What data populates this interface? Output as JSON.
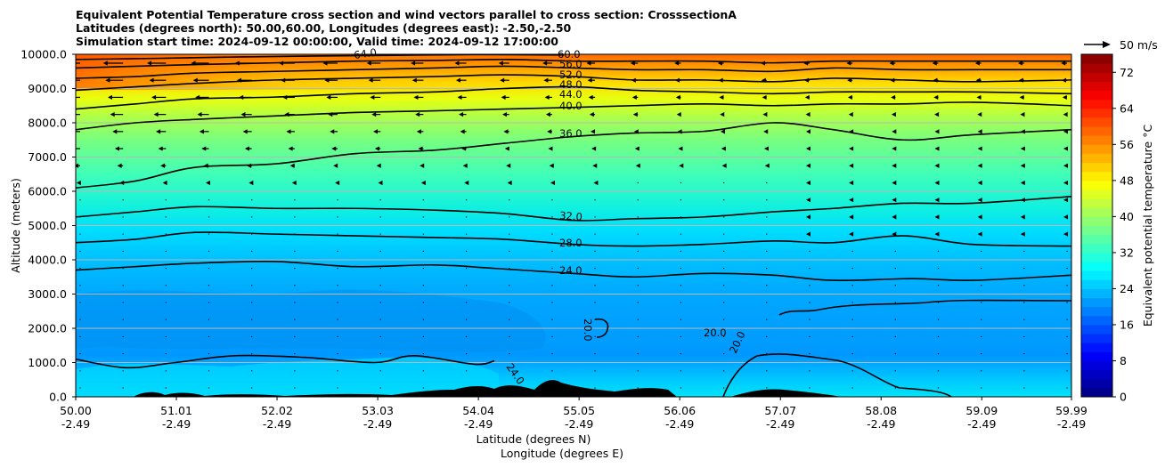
{
  "titles": [
    "Equivalent Potential Temperature cross section and wind vectors parallel to cross section: CrosssectionA",
    "Latitudes (degrees north): 50.00,60.00, Longitudes (degrees east): -2.50,-2.50",
    "Simulation start time: 2024-09-12 00:00:00, Valid time: 2024-09-12 17:00:00"
  ],
  "chart_data": {
    "type": "contour-cross-section",
    "ylabel": "Altitude (meters)",
    "xlabel_lat": "Latitude (degrees N)",
    "xlabel_lon": "Longitude (degrees E)",
    "ylim": [
      0,
      10000
    ],
    "xlim": [
      50.0,
      59.99
    ],
    "y_ticks": [
      "0.0",
      "1000.0",
      "2000.0",
      "3000.0",
      "4000.0",
      "5000.0",
      "6000.0",
      "7000.0",
      "8000.0",
      "9000.0",
      "10000.0"
    ],
    "x_ticks": [
      {
        "lat": "50.00",
        "lon": "-2.49"
      },
      {
        "lat": "51.01",
        "lon": "-2.49"
      },
      {
        "lat": "52.02",
        "lon": "-2.49"
      },
      {
        "lat": "53.03",
        "lon": "-2.49"
      },
      {
        "lat": "54.04",
        "lon": "-2.49"
      },
      {
        "lat": "55.05",
        "lon": "-2.49"
      },
      {
        "lat": "56.06",
        "lon": "-2.49"
      },
      {
        "lat": "57.07",
        "lon": "-2.49"
      },
      {
        "lat": "58.08",
        "lon": "-2.49"
      },
      {
        "lat": "59.09",
        "lon": "-2.49"
      },
      {
        "lat": "59.99",
        "lon": "-2.49"
      }
    ],
    "grid": "horizontal",
    "colorbar": {
      "label": "Equivalent potential temperature $^\\circ$C",
      "label_text": "Equivalent potential temperature °C",
      "min": 0,
      "max": 76,
      "step": 2,
      "ticks": [
        0,
        8,
        16,
        24,
        32,
        40,
        48,
        56,
        64,
        72
      ],
      "colormap": "jet"
    },
    "quiver_key": {
      "label": "50 m/s",
      "value": 50
    },
    "contour_labels": [
      "64.0",
      "60.0",
      "56.0",
      "52.0",
      "48.0",
      "44.0",
      "40.0",
      "36.0",
      "32.0",
      "28.0",
      "24.0",
      "20.0",
      "20.0",
      "20.0",
      "24.0"
    ],
    "contours": [
      {
        "level": 20,
        "label": "20.0",
        "points": [
          [
            50.0,
            1100
          ],
          [
            50.5,
            850
          ],
          [
            51.0,
            1000
          ],
          [
            51.6,
            1200
          ],
          [
            52.3,
            1150
          ],
          [
            53.0,
            1000
          ],
          [
            53.4,
            1200
          ],
          [
            54.0,
            950
          ],
          [
            54.2,
            1050
          ]
        ]
      },
      {
        "level": 24,
        "label": "24.0",
        "points": [
          [
            50.0,
            3700
          ],
          [
            50.6,
            3800
          ],
          [
            51.2,
            3900
          ],
          [
            52.0,
            3950
          ],
          [
            52.8,
            3800
          ],
          [
            53.6,
            3850
          ],
          [
            54.2,
            3750
          ],
          [
            55.0,
            3600
          ],
          [
            55.6,
            3500
          ],
          [
            56.3,
            3600
          ],
          [
            57.0,
            3550
          ],
          [
            57.6,
            3400
          ],
          [
            58.4,
            3450
          ],
          [
            59.0,
            3400
          ],
          [
            59.99,
            3550
          ]
        ]
      },
      {
        "level": 28,
        "label": "28.0",
        "points": [
          [
            50.0,
            4500
          ],
          [
            50.6,
            4600
          ],
          [
            51.2,
            4800
          ],
          [
            52.0,
            4750
          ],
          [
            52.8,
            4700
          ],
          [
            53.6,
            4650
          ],
          [
            54.3,
            4600
          ],
          [
            55.0,
            4450
          ],
          [
            55.6,
            4400
          ],
          [
            56.3,
            4450
          ],
          [
            57.0,
            4550
          ],
          [
            57.6,
            4500
          ],
          [
            58.3,
            4700
          ],
          [
            59.0,
            4450
          ],
          [
            59.99,
            4400
          ]
        ]
      },
      {
        "level": 32,
        "label": "32.0",
        "points": [
          [
            50.0,
            5250
          ],
          [
            50.6,
            5400
          ],
          [
            51.2,
            5550
          ],
          [
            52.0,
            5500
          ],
          [
            52.8,
            5500
          ],
          [
            53.6,
            5450
          ],
          [
            54.3,
            5350
          ],
          [
            55.0,
            5150
          ],
          [
            55.6,
            5200
          ],
          [
            56.3,
            5250
          ],
          [
            57.0,
            5400
          ],
          [
            57.6,
            5500
          ],
          [
            58.3,
            5650
          ],
          [
            59.0,
            5650
          ],
          [
            59.99,
            5850
          ]
        ]
      },
      {
        "level": 36,
        "label": "36.0",
        "points": [
          [
            50.0,
            6100
          ],
          [
            50.6,
            6300
          ],
          [
            51.2,
            6700
          ],
          [
            52.0,
            6800
          ],
          [
            52.8,
            7100
          ],
          [
            53.6,
            7200
          ],
          [
            54.3,
            7400
          ],
          [
            55.0,
            7600
          ],
          [
            55.6,
            7700
          ],
          [
            56.3,
            7750
          ],
          [
            57.0,
            8000
          ],
          [
            57.6,
            7800
          ],
          [
            58.3,
            7500
          ],
          [
            59.0,
            7650
          ],
          [
            59.99,
            7800
          ]
        ]
      },
      {
        "level": 40,
        "label": "40.0",
        "points": [
          [
            50.0,
            7800
          ],
          [
            50.6,
            8000
          ],
          [
            51.2,
            8100
          ],
          [
            52.0,
            8200
          ],
          [
            52.8,
            8300
          ],
          [
            53.6,
            8350
          ],
          [
            54.3,
            8400
          ],
          [
            55.0,
            8450
          ],
          [
            55.6,
            8500
          ],
          [
            56.3,
            8550
          ],
          [
            57.0,
            8500
          ],
          [
            57.6,
            8550
          ],
          [
            58.3,
            8550
          ],
          [
            59.0,
            8600
          ],
          [
            59.99,
            8500
          ]
        ]
      },
      {
        "level": 44,
        "label": "44.0",
        "points": [
          [
            50.0,
            8400
          ],
          [
            50.6,
            8550
          ],
          [
            51.2,
            8700
          ],
          [
            52.0,
            8750
          ],
          [
            52.8,
            8850
          ],
          [
            53.6,
            8900
          ],
          [
            54.3,
            9000
          ],
          [
            55.0,
            9050
          ],
          [
            55.6,
            8950
          ],
          [
            56.3,
            8900
          ],
          [
            57.0,
            8850
          ],
          [
            57.6,
            8900
          ],
          [
            58.3,
            8900
          ],
          [
            59.0,
            8900
          ],
          [
            59.99,
            8850
          ]
        ]
      },
      {
        "level": 48,
        "label": "48.0",
        "points": [
          [
            50.0,
            8950
          ],
          [
            50.6,
            9050
          ],
          [
            51.2,
            9150
          ],
          [
            52.0,
            9250
          ],
          [
            52.8,
            9300
          ],
          [
            53.6,
            9350
          ],
          [
            54.3,
            9400
          ],
          [
            55.0,
            9350
          ],
          [
            55.6,
            9250
          ],
          [
            56.3,
            9250
          ],
          [
            57.0,
            9200
          ],
          [
            57.6,
            9300
          ],
          [
            58.3,
            9250
          ],
          [
            59.0,
            9200
          ],
          [
            59.99,
            9250
          ]
        ]
      },
      {
        "level": 52,
        "label": "52.0",
        "points": [
          [
            50.0,
            9300
          ],
          [
            50.6,
            9350
          ],
          [
            51.2,
            9450
          ],
          [
            52.0,
            9500
          ],
          [
            52.8,
            9550
          ],
          [
            53.6,
            9600
          ],
          [
            54.3,
            9650
          ],
          [
            55.0,
            9600
          ],
          [
            55.6,
            9550
          ],
          [
            56.3,
            9550
          ],
          [
            57.0,
            9500
          ],
          [
            57.6,
            9600
          ],
          [
            58.3,
            9550
          ],
          [
            59.0,
            9550
          ],
          [
            59.99,
            9550
          ]
        ]
      },
      {
        "level": 56,
        "label": "56.0",
        "points": [
          [
            50.0,
            9600
          ],
          [
            50.6,
            9650
          ],
          [
            51.2,
            9700
          ],
          [
            52.0,
            9750
          ],
          [
            52.8,
            9800
          ],
          [
            53.6,
            9820
          ],
          [
            54.3,
            9850
          ],
          [
            55.0,
            9800
          ],
          [
            55.6,
            9800
          ],
          [
            56.3,
            9800
          ],
          [
            57.0,
            9750
          ],
          [
            57.6,
            9800
          ],
          [
            58.3,
            9800
          ],
          [
            59.0,
            9800
          ],
          [
            59.99,
            9800
          ]
        ]
      },
      {
        "level": 60,
        "label": "60.0",
        "points": [
          [
            50.0,
            9850
          ],
          [
            50.8,
            9880
          ],
          [
            51.6,
            9920
          ],
          [
            52.4,
            9950
          ],
          [
            53.2,
            9970
          ],
          [
            54.0,
            9990
          ],
          [
            54.9,
            9980
          ]
        ]
      }
    ]
  }
}
